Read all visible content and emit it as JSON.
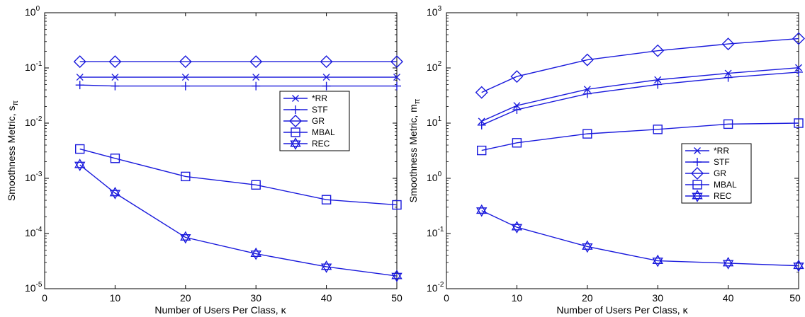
{
  "chart_data": [
    {
      "type": "line",
      "yscale": "log",
      "xlabel": "Number of Users Per Class, κ",
      "ylabel_main": "Smoothness Metric, s",
      "ylabel_sub": "π",
      "xlim": [
        0,
        50
      ],
      "ylim": [
        1e-05,
        1
      ],
      "xticks": [
        "0",
        "10",
        "20",
        "30",
        "40",
        "50"
      ],
      "yticks": [
        {
          "base": "10",
          "exp": "0"
        },
        {
          "base": "10",
          "exp": "-1"
        },
        {
          "base": "10",
          "exp": "-2"
        },
        {
          "base": "10",
          "exp": "-3"
        },
        {
          "base": "10",
          "exp": "-4"
        },
        {
          "base": "10",
          "exp": "-5"
        }
      ],
      "x": [
        5,
        10,
        20,
        30,
        40,
        50
      ],
      "series": [
        {
          "name": "*RR",
          "marker": "x",
          "values": [
            0.068,
            0.068,
            0.068,
            0.068,
            0.068,
            0.068
          ]
        },
        {
          "name": "STF",
          "marker": "plus",
          "values": [
            0.049,
            0.047,
            0.047,
            0.047,
            0.047,
            0.047
          ]
        },
        {
          "name": "GR",
          "marker": "diamond",
          "values": [
            0.13,
            0.13,
            0.13,
            0.13,
            0.13,
            0.13
          ]
        },
        {
          "name": "MBAL",
          "marker": "square",
          "values": [
            0.0034,
            0.0023,
            0.00108,
            0.00076,
            0.00041,
            0.00033
          ]
        },
        {
          "name": "REC",
          "marker": "star",
          "values": [
            0.00175,
            0.00054,
            8.5e-05,
            4.3e-05,
            2.5e-05,
            1.7e-05
          ]
        }
      ],
      "legend_position": "right",
      "grid": false,
      "line_color": "#1a1adc"
    },
    {
      "type": "line",
      "yscale": "log",
      "xlabel": "Number of Users Per Class, κ",
      "ylabel_main": "Smoothness Metric, m",
      "ylabel_sub": "π",
      "xlim": [
        0,
        50
      ],
      "ylim": [
        0.01,
        1000
      ],
      "xticks": [
        "0",
        "10",
        "20",
        "30",
        "40",
        "50"
      ],
      "yticks": [
        {
          "base": "10",
          "exp": "3"
        },
        {
          "base": "10",
          "exp": "2"
        },
        {
          "base": "10",
          "exp": "1"
        },
        {
          "base": "10",
          "exp": "0"
        },
        {
          "base": "10",
          "exp": "-1"
        },
        {
          "base": "10",
          "exp": "-2"
        }
      ],
      "x": [
        5,
        10,
        20,
        30,
        40,
        50
      ],
      "series": [
        {
          "name": "*RR",
          "marker": "x",
          "values": [
            10.8,
            20.8,
            41,
            61,
            80,
            101
          ]
        },
        {
          "name": "STF",
          "marker": "plus",
          "values": [
            9.2,
            17.5,
            34,
            50,
            67,
            84
          ]
        },
        {
          "name": "GR",
          "marker": "diamond",
          "values": [
            36,
            70,
            140,
            205,
            272,
            340
          ]
        },
        {
          "name": "MBAL",
          "marker": "square",
          "values": [
            3.2,
            4.4,
            6.4,
            7.7,
            9.6,
            10
          ]
        },
        {
          "name": "REC",
          "marker": "star",
          "values": [
            0.26,
            0.13,
            0.058,
            0.032,
            0.029,
            0.026
          ]
        }
      ],
      "legend_position": "right",
      "grid": false,
      "line_color": "#1a1adc"
    }
  ]
}
